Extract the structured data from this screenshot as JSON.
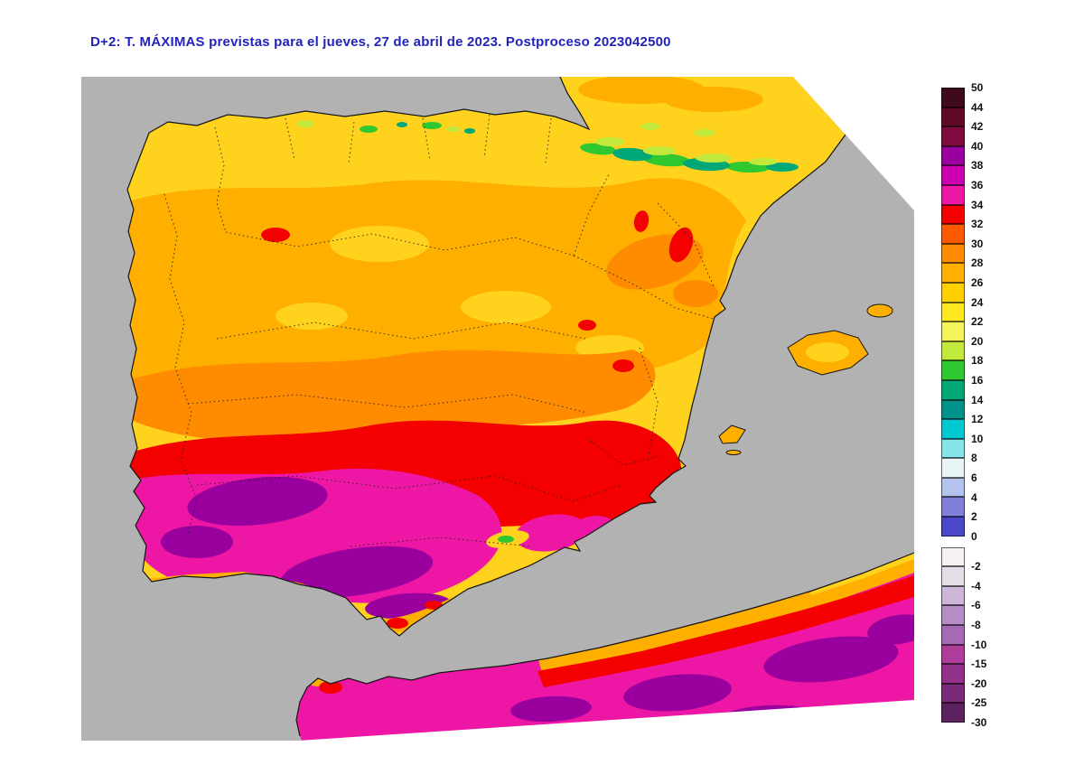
{
  "title": "D+2: T. MÁXIMAS previstas para el jueves, 27 de abril de 2023. Postproceso 2023042500",
  "map": {
    "sea_color": "#b2b2b2",
    "nodata_color": "#ffffff",
    "coast_color": "#141414",
    "border_dot_color": "#222222",
    "palette": {
      "yellow": "#ffd21e",
      "pale_green": "#c3e83c",
      "green": "#30c830",
      "teal": "#00a878",
      "amber": "#ffaf00",
      "orange": "#ff8c00",
      "orange_red": "#ff5a00",
      "red": "#f40000",
      "magenta": "#ee16a4",
      "purple": "#99009d"
    }
  },
  "legend": {
    "top": {
      "labels": [
        "50",
        "44",
        "42",
        "40",
        "38",
        "36",
        "34",
        "32",
        "30",
        "28",
        "26",
        "24",
        "22",
        "20",
        "18",
        "16",
        "14",
        "12",
        "10",
        "8",
        "6",
        "4",
        "2",
        "0"
      ],
      "colors": [
        "#3f0a1e",
        "#600a28",
        "#7d0c3c",
        "#99009d",
        "#cc00b0",
        "#ee16a4",
        "#f40000",
        "#ff5a00",
        "#ff8c00",
        "#ffaf00",
        "#ffd000",
        "#ffe81e",
        "#f4f45a",
        "#c3e83c",
        "#30c830",
        "#00a878",
        "#00938c",
        "#00c8d2",
        "#84e4ea",
        "#e8f4f6",
        "#b4c2ee",
        "#8080da",
        "#4848c8"
      ]
    },
    "bottom": {
      "labels": [
        "-2",
        "-4",
        "-6",
        "-8",
        "-10",
        "-15",
        "-20",
        "-25",
        "-30"
      ],
      "colors": [
        "#f6f0f0",
        "#e4dce6",
        "#cdb6d8",
        "#b48cc6",
        "#a66ab4",
        "#b03c9c",
        "#93308a",
        "#7a2a78",
        "#5c2260"
      ]
    }
  }
}
